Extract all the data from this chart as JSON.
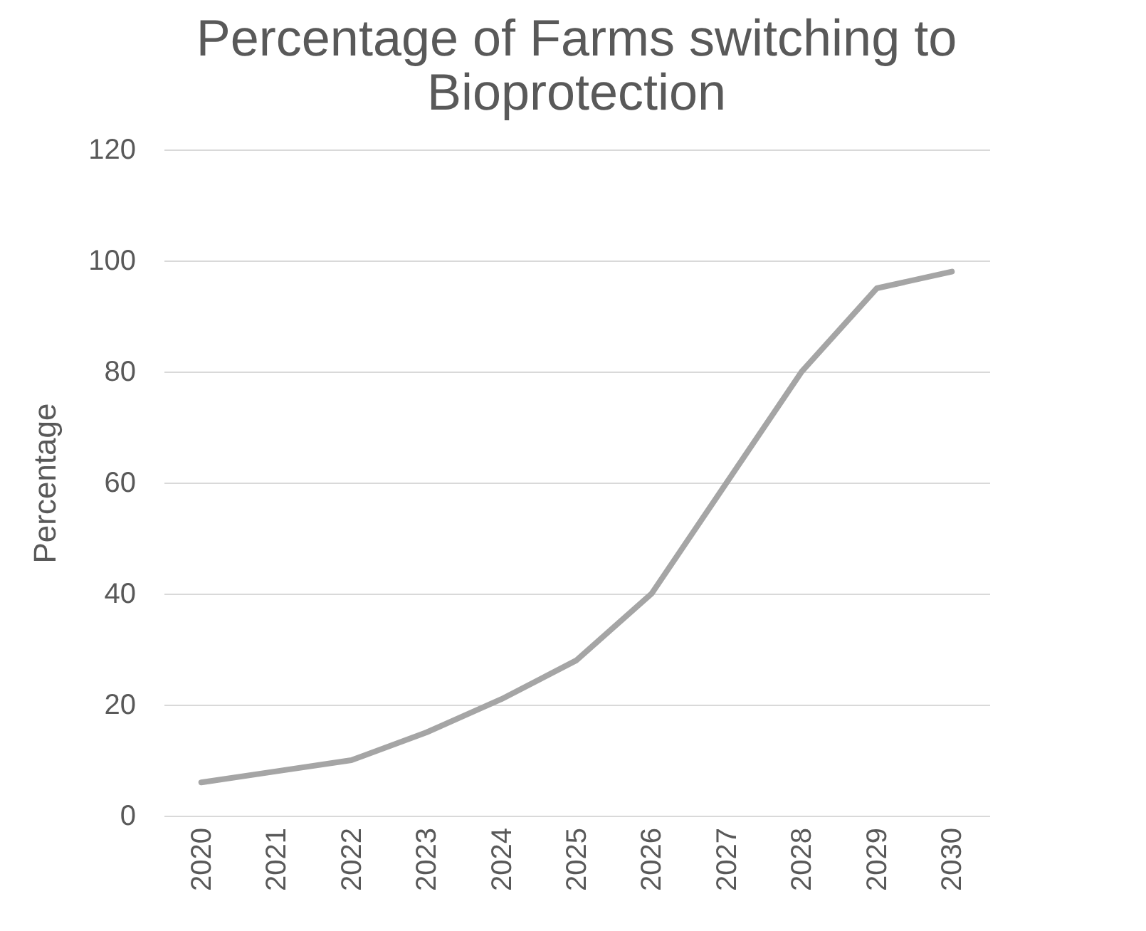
{
  "chart_data": {
    "type": "line",
    "title": "Percentage of Farms switching to Bioprotection",
    "ylabel": "Percentage",
    "categories": [
      "2020",
      "2021",
      "2022",
      "2023",
      "2024",
      "2025",
      "2026",
      "2027",
      "2028",
      "2029",
      "2030"
    ],
    "series": [
      {
        "color": "#a5a5a5",
        "values": [
          6,
          8,
          10,
          15,
          21,
          28,
          40,
          60,
          80,
          95,
          98
        ]
      }
    ],
    "ylim": [
      0,
      120
    ],
    "yticks": [
      0,
      20,
      40,
      60,
      80,
      100,
      120
    ],
    "grid": "y",
    "marker": "none",
    "line_style": "solid"
  }
}
